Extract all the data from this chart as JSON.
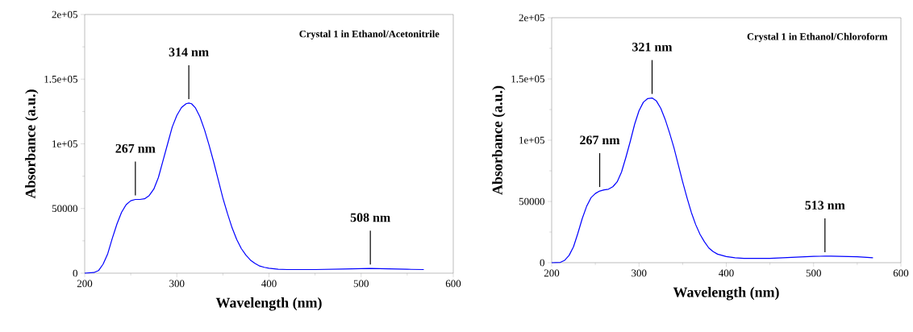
{
  "chart_data": [
    {
      "type": "line",
      "title": "Crystal 1 in Ethanol/Acetonitrile",
      "xlabel": "Wavelength (nm)",
      "ylabel": "Absorbance (a.u.)",
      "x": [
        200,
        210,
        215,
        220,
        225,
        230,
        235,
        240,
        245,
        250,
        255,
        260,
        265,
        270,
        275,
        280,
        285,
        290,
        295,
        300,
        305,
        310,
        313,
        316,
        320,
        325,
        330,
        335,
        340,
        345,
        350,
        355,
        360,
        365,
        370,
        375,
        380,
        385,
        390,
        395,
        400,
        410,
        420,
        450,
        480,
        500,
        510,
        530,
        550,
        568
      ],
      "series": [
        {
          "color": "#0000ff",
          "values": [
            0,
            500,
            2000,
            7000,
            15000,
            27000,
            38000,
            47000,
            53000,
            56000,
            57000,
            57000,
            57500,
            60000,
            65000,
            74000,
            87000,
            100000,
            113000,
            122000,
            128000,
            131000,
            131500,
            131000,
            128000,
            121000,
            111000,
            99000,
            86000,
            72000,
            58000,
            46000,
            35000,
            26000,
            19000,
            14000,
            10000,
            7500,
            5500,
            4500,
            3800,
            3000,
            2800,
            2800,
            3200,
            3500,
            3600,
            3400,
            3000,
            2800
          ]
        }
      ],
      "xlim": [
        200,
        600
      ],
      "ylim": [
        0,
        200000
      ],
      "xticks": [
        200,
        {
          "value": 250,
          "label": null
        },
        300,
        {
          "value": 350,
          "label": null
        },
        400,
        {
          "value": 450,
          "label": null
        },
        500,
        {
          "value": 550,
          "label": null
        },
        600
      ],
      "yticks": [
        0,
        {
          "value": 25000,
          "label": null
        },
        50000,
        {
          "value": 75000,
          "label": null
        },
        {
          "value": 100000,
          "label": "1e+05"
        },
        {
          "value": 125000,
          "label": null
        },
        {
          "value": 150000,
          "label": "1.5e+05"
        },
        {
          "value": 175000,
          "label": null
        },
        {
          "value": 200000,
          "label": "2e+05"
        }
      ],
      "annotations": [
        {
          "text": "267 nm",
          "x": 255,
          "y": 57000
        },
        {
          "text": "314 nm",
          "x": 313,
          "y": 131500
        },
        {
          "text": "508 nm",
          "x": 510,
          "y": 3600
        }
      ]
    },
    {
      "type": "line",
      "title": "Crystal 1 in Ethanol/Chloroform",
      "xlabel": "Wavelength (nm)",
      "ylabel": "Absorbance (a.u.)",
      "x": [
        200,
        210,
        215,
        220,
        225,
        230,
        235,
        240,
        245,
        250,
        255,
        260,
        265,
        270,
        275,
        280,
        285,
        290,
        295,
        300,
        305,
        310,
        315,
        320,
        325,
        330,
        335,
        340,
        345,
        350,
        355,
        360,
        365,
        370,
        375,
        380,
        385,
        390,
        400,
        410,
        420,
        450,
        480,
        500,
        513,
        520,
        550,
        568
      ],
      "series": [
        {
          "color": "#0000ff",
          "values": [
            0,
            300,
            2000,
            6000,
            13000,
            24000,
            36000,
            46000,
            53000,
            56500,
            58500,
            59500,
            60000,
            62000,
            66000,
            74000,
            86000,
            99000,
            113000,
            124000,
            131000,
            134000,
            134500,
            132000,
            126000,
            117000,
            106000,
            94000,
            80000,
            66000,
            53000,
            41000,
            31000,
            23000,
            17000,
            12000,
            9000,
            7000,
            5000,
            4000,
            3500,
            3600,
            4500,
            5200,
            5300,
            5400,
            4800,
            4000
          ]
        }
      ],
      "xlim": [
        200,
        600
      ],
      "ylim": [
        0,
        200000
      ],
      "xticks": [
        200,
        {
          "value": 250,
          "label": null
        },
        300,
        {
          "value": 350,
          "label": null
        },
        400,
        {
          "value": 450,
          "label": null
        },
        500,
        {
          "value": 550,
          "label": null
        },
        600
      ],
      "yticks": [
        0,
        {
          "value": 25000,
          "label": null
        },
        50000,
        {
          "value": 75000,
          "label": null
        },
        {
          "value": 100000,
          "label": "1e+05"
        },
        {
          "value": 125000,
          "label": null
        },
        {
          "value": 150000,
          "label": "1.5e+05"
        },
        {
          "value": 175000,
          "label": null
        },
        {
          "value": 200000,
          "label": "2e+05"
        }
      ],
      "annotations": [
        {
          "text": "267 nm",
          "x": 255,
          "y": 58500
        },
        {
          "text": "321 nm",
          "x": 315,
          "y": 134500
        },
        {
          "text": "513 nm",
          "x": 513,
          "y": 5300
        }
      ]
    }
  ]
}
